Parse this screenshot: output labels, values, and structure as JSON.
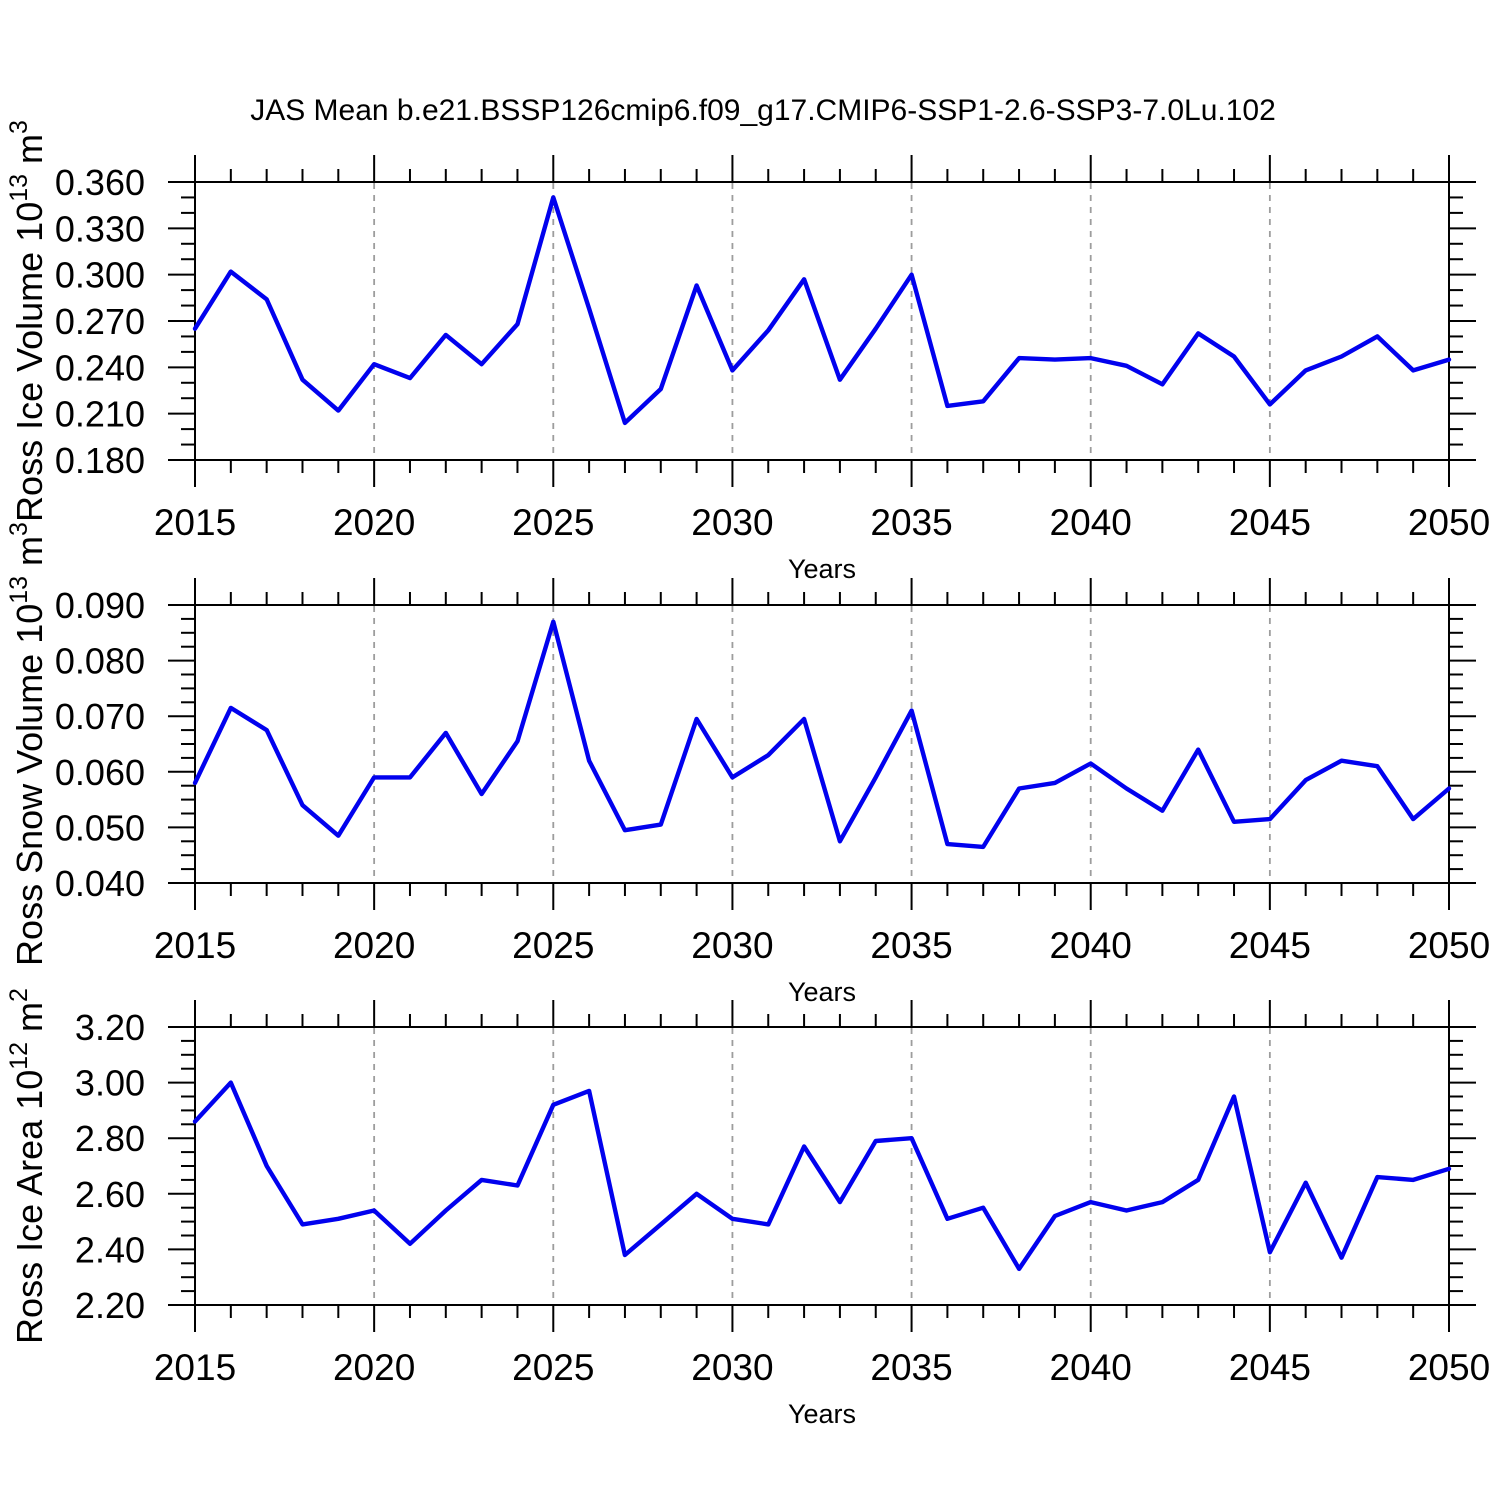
{
  "title": "JAS Mean b.e21.BSSP126cmip6.f09_g17.CMIP6-SSP1-2.6-SSP3-7.0Lu.102",
  "colors": {
    "line": "#0101ee",
    "grid": "#9d9d9d",
    "axis": "#000000",
    "background": "#ffffff"
  },
  "years": [
    2015,
    2016,
    2017,
    2018,
    2019,
    2020,
    2021,
    2022,
    2023,
    2024,
    2025,
    2026,
    2027,
    2028,
    2029,
    2030,
    2031,
    2032,
    2033,
    2034,
    2035,
    2036,
    2037,
    2038,
    2039,
    2040,
    2041,
    2042,
    2043,
    2044,
    2045,
    2046,
    2047,
    2048,
    2049,
    2050
  ],
  "chart_data": [
    {
      "type": "line",
      "panel": "ross-ice-volume",
      "ylabel_text": "Ross Ice Volume 10^13 m^3",
      "ylabel_parts": [
        {
          "t": "Ross Ice Volume 10"
        },
        {
          "t": "13",
          "sup": true
        },
        {
          "t": " m"
        },
        {
          "t": "3",
          "sup": true
        }
      ],
      "xlabel": "Years",
      "x_start": 2015,
      "x_end": 2050,
      "xticks": [
        2015,
        2020,
        2025,
        2030,
        2035,
        2040,
        2045,
        2050
      ],
      "xtick_labels": [
        "2015",
        "2020",
        "2025",
        "2030",
        "2035",
        "2040",
        "2045",
        "2050"
      ],
      "xminor_step": 1,
      "grid_x": [
        2020,
        2025,
        2030,
        2035,
        2040,
        2045
      ],
      "ylim": [
        0.18,
        0.36
      ],
      "yticks": [
        0.18,
        0.21,
        0.24,
        0.27,
        0.3,
        0.33,
        0.36
      ],
      "ytick_labels": [
        "0.180",
        "0.210",
        "0.240",
        "0.270",
        "0.300",
        "0.330",
        "0.360"
      ],
      "yminor_step": 0.01,
      "values": [
        0.265,
        0.302,
        0.284,
        0.232,
        0.212,
        0.242,
        0.233,
        0.261,
        0.242,
        0.268,
        0.35,
        0.278,
        0.204,
        0.226,
        0.293,
        0.238,
        0.264,
        0.297,
        0.232,
        0.265,
        0.3,
        0.215,
        0.218,
        0.246,
        0.245,
        0.246,
        0.241,
        0.229,
        0.262,
        0.247,
        0.216,
        0.238,
        0.247,
        0.26,
        0.238,
        0.245
      ]
    },
    {
      "type": "line",
      "panel": "ross-snow-volume",
      "ylabel_text": "Ross Snow Volume 10^13 m^3",
      "ylabel_parts": [
        {
          "t": "Ross Snow Volume 10"
        },
        {
          "t": "13",
          "sup": true
        },
        {
          "t": " m"
        },
        {
          "t": "3",
          "sup": true
        }
      ],
      "xlabel": "Years",
      "x_start": 2015,
      "x_end": 2050,
      "xticks": [
        2015,
        2020,
        2025,
        2030,
        2035,
        2040,
        2045,
        2050
      ],
      "xtick_labels": [
        "2015",
        "2020",
        "2025",
        "2030",
        "2035",
        "2040",
        "2045",
        "2050"
      ],
      "xminor_step": 1,
      "grid_x": [
        2020,
        2025,
        2030,
        2035,
        2040,
        2045
      ],
      "ylim": [
        0.04,
        0.09
      ],
      "yticks": [
        0.04,
        0.05,
        0.06,
        0.07,
        0.08,
        0.09
      ],
      "ytick_labels": [
        "0.040",
        "0.050",
        "0.060",
        "0.070",
        "0.080",
        "0.090"
      ],
      "yminor_step": 0.0025,
      "values": [
        0.058,
        0.0715,
        0.0675,
        0.054,
        0.0485,
        0.059,
        0.059,
        0.067,
        0.056,
        0.0655,
        0.087,
        0.062,
        0.0495,
        0.0505,
        0.0695,
        0.059,
        0.063,
        0.0695,
        0.0475,
        0.059,
        0.071,
        0.047,
        0.0465,
        0.057,
        0.058,
        0.0615,
        0.057,
        0.053,
        0.064,
        0.051,
        0.0515,
        0.0585,
        0.062,
        0.061,
        0.0515,
        0.057
      ]
    },
    {
      "type": "line",
      "panel": "ross-ice-area",
      "ylabel_text": "Ross Ice Area 10^12 m^2",
      "ylabel_parts": [
        {
          "t": "Ross Ice Area 10"
        },
        {
          "t": "12",
          "sup": true
        },
        {
          "t": " m"
        },
        {
          "t": "2",
          "sup": true
        }
      ],
      "xlabel": "Years",
      "x_start": 2015,
      "x_end": 2050,
      "xticks": [
        2015,
        2020,
        2025,
        2030,
        2035,
        2040,
        2045,
        2050
      ],
      "xtick_labels": [
        "2015",
        "2020",
        "2025",
        "2030",
        "2035",
        "2040",
        "2045",
        "2050"
      ],
      "xminor_step": 1,
      "grid_x": [
        2020,
        2025,
        2030,
        2035,
        2040,
        2045
      ],
      "ylim": [
        2.2,
        3.2
      ],
      "yticks": [
        2.2,
        2.4,
        2.6,
        2.8,
        3.0,
        3.2
      ],
      "ytick_labels": [
        "2.20",
        "2.40",
        "2.60",
        "2.80",
        "3.00",
        "3.20"
      ],
      "yminor_step": 0.05,
      "values": [
        2.86,
        3.0,
        2.7,
        2.49,
        2.51,
        2.54,
        2.42,
        2.54,
        2.65,
        2.63,
        2.92,
        2.97,
        2.38,
        2.49,
        2.6,
        2.51,
        2.49,
        2.77,
        2.57,
        2.79,
        2.8,
        2.51,
        2.55,
        2.33,
        2.52,
        2.57,
        2.54,
        2.57,
        2.65,
        2.95,
        2.39,
        2.64,
        2.37,
        2.66,
        2.65,
        2.69
      ]
    }
  ]
}
